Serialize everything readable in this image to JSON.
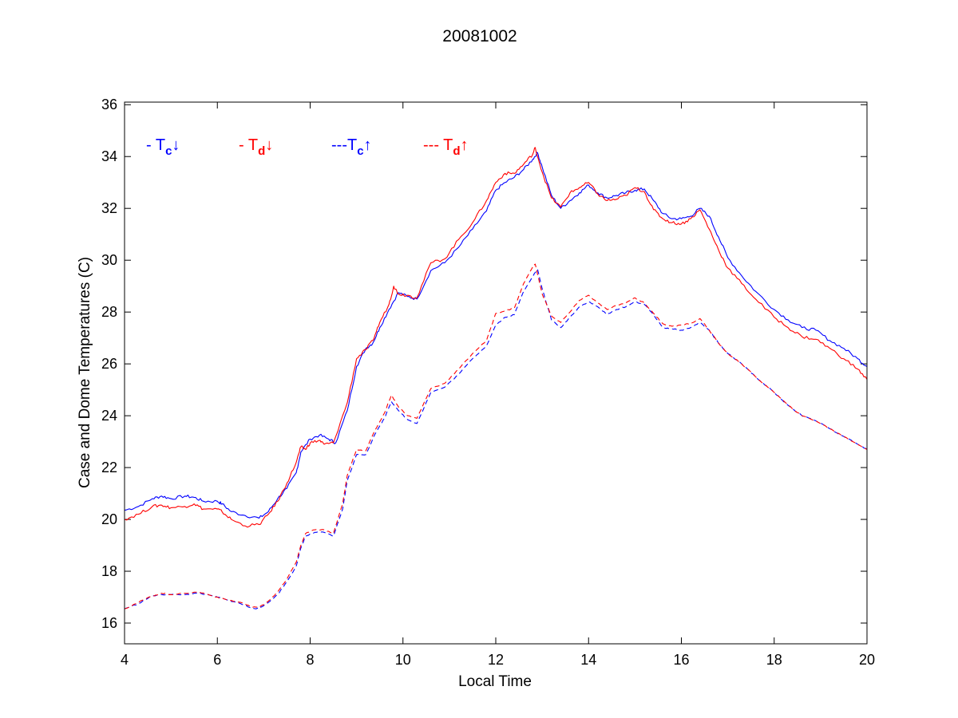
{
  "chart_data": {
    "type": "line",
    "title": "20081002",
    "xlabel": "Local Time",
    "ylabel": "Case and Dome Temperatures (C)",
    "xlim": [
      4,
      20
    ],
    "ylim": [
      15.2,
      36.1
    ],
    "xticks": [
      4,
      6,
      8,
      10,
      12,
      14,
      16,
      18,
      20
    ],
    "yticks": [
      16,
      18,
      20,
      22,
      24,
      26,
      28,
      30,
      32,
      34,
      36
    ],
    "grid": false,
    "legend_position": "top-left inside plot",
    "series": [
      {
        "key": "tc_down",
        "legend": {
          "prefix": "- T",
          "sub": "c",
          "arrow": "↓"
        },
        "color": "#0000ff",
        "dash": "solid",
        "points": [
          [
            4.0,
            20.35
          ],
          [
            4.3,
            20.5
          ],
          [
            4.6,
            20.8
          ],
          [
            4.8,
            20.9
          ],
          [
            5.0,
            20.8
          ],
          [
            5.3,
            20.9
          ],
          [
            5.5,
            20.85
          ],
          [
            5.7,
            20.7
          ],
          [
            6.0,
            20.7
          ],
          [
            6.1,
            20.6
          ],
          [
            6.3,
            20.3
          ],
          [
            6.6,
            20.15
          ],
          [
            6.9,
            20.05
          ],
          [
            7.1,
            20.3
          ],
          [
            7.3,
            20.8
          ],
          [
            7.5,
            21.2
          ],
          [
            7.7,
            21.8
          ],
          [
            7.8,
            22.6
          ],
          [
            8.0,
            23.1
          ],
          [
            8.2,
            23.25
          ],
          [
            8.4,
            23.1
          ],
          [
            8.55,
            22.95
          ],
          [
            8.8,
            24.2
          ],
          [
            9.0,
            25.9
          ],
          [
            9.2,
            26.6
          ],
          [
            9.35,
            26.8
          ],
          [
            9.5,
            27.4
          ],
          [
            9.7,
            28.1
          ],
          [
            9.9,
            28.75
          ],
          [
            10.1,
            28.6
          ],
          [
            10.3,
            28.5
          ],
          [
            10.6,
            29.6
          ],
          [
            10.9,
            29.9
          ],
          [
            11.2,
            30.5
          ],
          [
            11.5,
            31.2
          ],
          [
            11.8,
            31.9
          ],
          [
            12.0,
            32.7
          ],
          [
            12.2,
            33.0
          ],
          [
            12.4,
            33.2
          ],
          [
            12.6,
            33.5
          ],
          [
            12.8,
            33.9
          ],
          [
            12.9,
            34.15
          ],
          [
            13.0,
            33.6
          ],
          [
            13.2,
            32.5
          ],
          [
            13.4,
            32.0
          ],
          [
            13.6,
            32.3
          ],
          [
            13.8,
            32.6
          ],
          [
            14.0,
            32.9
          ],
          [
            14.2,
            32.6
          ],
          [
            14.4,
            32.4
          ],
          [
            14.6,
            32.5
          ],
          [
            14.8,
            32.6
          ],
          [
            15.0,
            32.7
          ],
          [
            15.2,
            32.75
          ],
          [
            15.4,
            32.3
          ],
          [
            15.6,
            31.8
          ],
          [
            15.8,
            31.6
          ],
          [
            16.0,
            31.6
          ],
          [
            16.2,
            31.7
          ],
          [
            16.4,
            32.0
          ],
          [
            16.6,
            31.7
          ],
          [
            16.8,
            30.9
          ],
          [
            17.0,
            30.1
          ],
          [
            17.3,
            29.4
          ],
          [
            17.6,
            28.8
          ],
          [
            18.0,
            28.1
          ],
          [
            18.3,
            27.7
          ],
          [
            18.6,
            27.4
          ],
          [
            18.9,
            27.3
          ],
          [
            19.2,
            26.9
          ],
          [
            19.5,
            26.6
          ],
          [
            19.8,
            26.2
          ],
          [
            20.0,
            25.9
          ]
        ]
      },
      {
        "key": "td_down",
        "legend": {
          "prefix": "- T",
          "sub": "d",
          "arrow": "↓"
        },
        "color": "#ff0000",
        "dash": "solid",
        "points": [
          [
            4.0,
            20.0
          ],
          [
            4.3,
            20.2
          ],
          [
            4.6,
            20.5
          ],
          [
            4.8,
            20.55
          ],
          [
            5.0,
            20.45
          ],
          [
            5.3,
            20.5
          ],
          [
            5.5,
            20.6
          ],
          [
            5.7,
            20.4
          ],
          [
            6.0,
            20.4
          ],
          [
            6.1,
            20.3
          ],
          [
            6.3,
            20.0
          ],
          [
            6.6,
            19.75
          ],
          [
            6.9,
            19.8
          ],
          [
            7.1,
            20.2
          ],
          [
            7.3,
            20.7
          ],
          [
            7.5,
            21.4
          ],
          [
            7.7,
            22.2
          ],
          [
            7.8,
            22.8
          ],
          [
            7.9,
            22.7
          ],
          [
            8.0,
            22.95
          ],
          [
            8.2,
            23.05
          ],
          [
            8.3,
            22.9
          ],
          [
            8.5,
            22.95
          ],
          [
            8.8,
            24.5
          ],
          [
            9.0,
            26.2
          ],
          [
            9.2,
            26.55
          ],
          [
            9.35,
            26.9
          ],
          [
            9.5,
            27.6
          ],
          [
            9.7,
            28.3
          ],
          [
            9.8,
            29.0
          ],
          [
            9.9,
            28.7
          ],
          [
            10.1,
            28.65
          ],
          [
            10.3,
            28.55
          ],
          [
            10.6,
            29.9
          ],
          [
            10.9,
            30.05
          ],
          [
            11.2,
            30.8
          ],
          [
            11.5,
            31.45
          ],
          [
            11.8,
            32.3
          ],
          [
            12.0,
            33.0
          ],
          [
            12.2,
            33.35
          ],
          [
            12.4,
            33.35
          ],
          [
            12.6,
            33.7
          ],
          [
            12.8,
            34.1
          ],
          [
            12.85,
            34.35
          ],
          [
            13.0,
            33.4
          ],
          [
            13.2,
            32.4
          ],
          [
            13.4,
            32.05
          ],
          [
            13.6,
            32.6
          ],
          [
            13.8,
            32.8
          ],
          [
            14.0,
            33.0
          ],
          [
            14.2,
            32.55
          ],
          [
            14.4,
            32.3
          ],
          [
            14.6,
            32.35
          ],
          [
            14.8,
            32.5
          ],
          [
            15.0,
            32.8
          ],
          [
            15.2,
            32.65
          ],
          [
            15.4,
            31.95
          ],
          [
            15.6,
            31.6
          ],
          [
            15.8,
            31.45
          ],
          [
            16.0,
            31.4
          ],
          [
            16.2,
            31.6
          ],
          [
            16.4,
            31.95
          ],
          [
            16.6,
            31.2
          ],
          [
            16.8,
            30.4
          ],
          [
            17.0,
            29.7
          ],
          [
            17.3,
            29.1
          ],
          [
            17.6,
            28.5
          ],
          [
            18.0,
            27.8
          ],
          [
            18.3,
            27.4
          ],
          [
            18.6,
            27.05
          ],
          [
            18.9,
            26.95
          ],
          [
            19.2,
            26.6
          ],
          [
            19.5,
            26.2
          ],
          [
            19.8,
            25.8
          ],
          [
            20.0,
            25.4
          ]
        ]
      },
      {
        "key": "tc_up",
        "legend": {
          "prefix": "---T",
          "sub": "c",
          "arrow": "↑"
        },
        "color": "#0000ff",
        "dash": "dashed",
        "points": [
          [
            4.0,
            16.55
          ],
          [
            4.3,
            16.75
          ],
          [
            4.6,
            17.05
          ],
          [
            4.8,
            17.1
          ],
          [
            5.0,
            17.1
          ],
          [
            5.3,
            17.1
          ],
          [
            5.6,
            17.15
          ],
          [
            5.9,
            17.05
          ],
          [
            6.2,
            16.9
          ],
          [
            6.5,
            16.75
          ],
          [
            6.7,
            16.6
          ],
          [
            6.9,
            16.55
          ],
          [
            7.1,
            16.8
          ],
          [
            7.3,
            17.1
          ],
          [
            7.5,
            17.6
          ],
          [
            7.7,
            18.2
          ],
          [
            7.8,
            18.9
          ],
          [
            7.9,
            19.35
          ],
          [
            8.1,
            19.5
          ],
          [
            8.3,
            19.5
          ],
          [
            8.5,
            19.35
          ],
          [
            8.7,
            20.4
          ],
          [
            8.8,
            21.5
          ],
          [
            9.0,
            22.5
          ],
          [
            9.2,
            22.5
          ],
          [
            9.4,
            23.3
          ],
          [
            9.6,
            23.9
          ],
          [
            9.75,
            24.55
          ],
          [
            9.9,
            24.2
          ],
          [
            10.1,
            23.85
          ],
          [
            10.3,
            23.7
          ],
          [
            10.6,
            24.9
          ],
          [
            10.9,
            25.1
          ],
          [
            11.2,
            25.6
          ],
          [
            11.5,
            26.2
          ],
          [
            11.8,
            26.7
          ],
          [
            12.0,
            27.5
          ],
          [
            12.2,
            27.8
          ],
          [
            12.4,
            27.9
          ],
          [
            12.6,
            28.8
          ],
          [
            12.8,
            29.4
          ],
          [
            12.9,
            29.65
          ],
          [
            13.0,
            28.9
          ],
          [
            13.2,
            27.7
          ],
          [
            13.4,
            27.4
          ],
          [
            13.6,
            27.8
          ],
          [
            13.8,
            28.2
          ],
          [
            14.0,
            28.4
          ],
          [
            14.2,
            28.2
          ],
          [
            14.4,
            27.9
          ],
          [
            14.6,
            28.1
          ],
          [
            14.8,
            28.2
          ],
          [
            15.0,
            28.4
          ],
          [
            15.2,
            28.3
          ],
          [
            15.4,
            27.9
          ],
          [
            15.6,
            27.4
          ],
          [
            15.8,
            27.35
          ],
          [
            16.0,
            27.3
          ],
          [
            16.2,
            27.4
          ],
          [
            16.4,
            27.6
          ],
          [
            16.6,
            27.3
          ],
          [
            16.8,
            26.8
          ],
          [
            17.0,
            26.4
          ],
          [
            17.3,
            26.0
          ],
          [
            17.6,
            25.5
          ],
          [
            18.0,
            24.9
          ],
          [
            18.3,
            24.4
          ],
          [
            18.6,
            24.0
          ],
          [
            18.9,
            23.8
          ],
          [
            19.2,
            23.5
          ],
          [
            19.5,
            23.2
          ],
          [
            19.8,
            22.9
          ],
          [
            20.0,
            22.7
          ]
        ]
      },
      {
        "key": "td_up",
        "legend": {
          "prefix": "--- T",
          "sub": "d",
          "arrow": "↑"
        },
        "color": "#ff0000",
        "dash": "dashed",
        "points": [
          [
            4.0,
            16.55
          ],
          [
            4.3,
            16.8
          ],
          [
            4.6,
            17.05
          ],
          [
            4.8,
            17.15
          ],
          [
            5.0,
            17.1
          ],
          [
            5.3,
            17.15
          ],
          [
            5.6,
            17.2
          ],
          [
            5.9,
            17.05
          ],
          [
            6.2,
            16.9
          ],
          [
            6.5,
            16.8
          ],
          [
            6.7,
            16.65
          ],
          [
            6.9,
            16.6
          ],
          [
            7.1,
            16.85
          ],
          [
            7.3,
            17.2
          ],
          [
            7.5,
            17.7
          ],
          [
            7.7,
            18.35
          ],
          [
            7.8,
            19.0
          ],
          [
            7.9,
            19.45
          ],
          [
            8.1,
            19.6
          ],
          [
            8.3,
            19.6
          ],
          [
            8.5,
            19.45
          ],
          [
            8.7,
            20.6
          ],
          [
            8.8,
            21.7
          ],
          [
            9.0,
            22.7
          ],
          [
            9.2,
            22.65
          ],
          [
            9.4,
            23.45
          ],
          [
            9.6,
            24.1
          ],
          [
            9.75,
            24.8
          ],
          [
            9.9,
            24.35
          ],
          [
            10.1,
            24.0
          ],
          [
            10.3,
            23.9
          ],
          [
            10.6,
            25.05
          ],
          [
            10.9,
            25.25
          ],
          [
            11.2,
            25.8
          ],
          [
            11.5,
            26.4
          ],
          [
            11.8,
            26.9
          ],
          [
            12.0,
            27.95
          ],
          [
            12.2,
            28.05
          ],
          [
            12.4,
            28.15
          ],
          [
            12.6,
            29.1
          ],
          [
            12.8,
            29.75
          ],
          [
            12.85,
            29.85
          ],
          [
            13.0,
            28.7
          ],
          [
            13.2,
            27.85
          ],
          [
            13.4,
            27.6
          ],
          [
            13.6,
            28.0
          ],
          [
            13.8,
            28.45
          ],
          [
            14.0,
            28.65
          ],
          [
            14.2,
            28.35
          ],
          [
            14.4,
            28.1
          ],
          [
            14.6,
            28.25
          ],
          [
            14.8,
            28.35
          ],
          [
            15.0,
            28.55
          ],
          [
            15.2,
            28.35
          ],
          [
            15.4,
            27.95
          ],
          [
            15.6,
            27.55
          ],
          [
            15.8,
            27.45
          ],
          [
            16.0,
            27.5
          ],
          [
            16.2,
            27.55
          ],
          [
            16.4,
            27.75
          ],
          [
            16.6,
            27.3
          ],
          [
            16.8,
            26.8
          ],
          [
            17.0,
            26.4
          ],
          [
            17.3,
            26.0
          ],
          [
            17.6,
            25.5
          ],
          [
            18.0,
            24.9
          ],
          [
            18.3,
            24.4
          ],
          [
            18.6,
            24.0
          ],
          [
            18.9,
            23.8
          ],
          [
            19.2,
            23.5
          ],
          [
            19.5,
            23.2
          ],
          [
            19.8,
            22.9
          ],
          [
            20.0,
            22.7
          ]
        ]
      }
    ]
  }
}
